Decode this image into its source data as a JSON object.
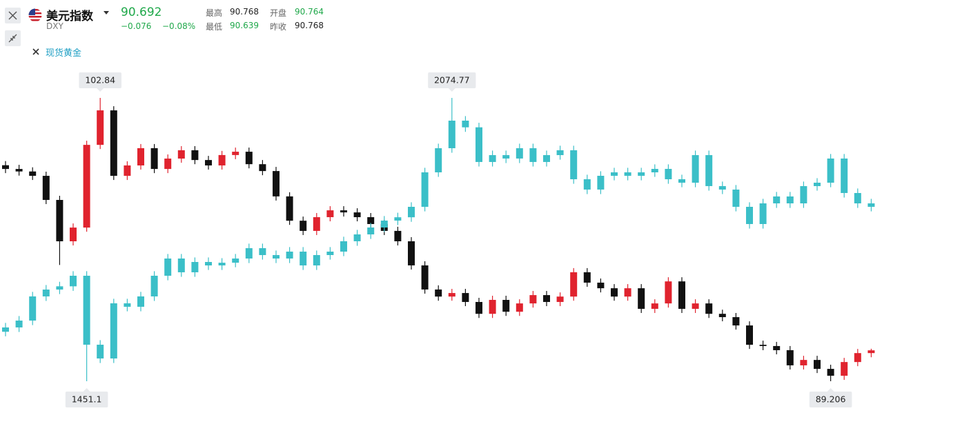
{
  "header": {
    "symbol": "DXY",
    "price": "90.692",
    "change": "−0.076",
    "change_pct": "−0.08%",
    "stats": [
      {
        "label": "最高",
        "value": "90.768"
      },
      {
        "label": "开盘",
        "value": "90.764"
      },
      {
        "label": "最低",
        "value": "90.639"
      },
      {
        "label": "昨收",
        "value": "90.768"
      }
    ]
  },
  "chart_data": {
    "type": "candlestick",
    "series": [
      {
        "name": "美元指数",
        "up_color": "#e0232e",
        "down_color": "#111111",
        "open": [
          99.6,
          99.42,
          99.3,
          99.09,
          97.93,
          95.94,
          96.6,
          100.58,
          102.24,
          99.09,
          99.59,
          100.42,
          99.42,
          99.92,
          100.32,
          99.85,
          99.59,
          100.09,
          100.25,
          99.65,
          99.32,
          98.1,
          96.93,
          96.44,
          97.1,
          97.43,
          97.33,
          97.1,
          96.77,
          96.44,
          95.94,
          94.78,
          93.62,
          93.28,
          93.45,
          93.02,
          92.45,
          93.12,
          92.55,
          92.95,
          93.35,
          93.02,
          93.28,
          94.45,
          93.95,
          93.68,
          93.28,
          93.68,
          92.69,
          92.95,
          94.01,
          92.69,
          92.95,
          92.45,
          92.29,
          91.89,
          90.96,
          90.9,
          90.7,
          89.97,
          90.23,
          89.8,
          89.47,
          90.13,
          90.56
        ],
        "high": [
          99.8,
          99.62,
          99.5,
          99.29,
          98.13,
          96.8,
          100.78,
          102.84,
          102.44,
          99.79,
          100.62,
          100.62,
          100.12,
          100.52,
          100.52,
          100.05,
          100.29,
          100.45,
          100.45,
          99.85,
          99.52,
          98.3,
          97.13,
          97.3,
          97.63,
          97.63,
          97.53,
          97.3,
          96.97,
          96.64,
          96.14,
          94.98,
          93.82,
          93.65,
          93.65,
          93.22,
          93.32,
          93.32,
          93.15,
          93.55,
          93.55,
          93.48,
          94.65,
          94.65,
          94.15,
          93.88,
          93.88,
          93.88,
          93.15,
          94.21,
          94.21,
          93.15,
          93.15,
          92.65,
          92.49,
          92.09,
          91.16,
          91.1,
          90.9,
          90.43,
          90.43,
          90.0,
          90.33,
          90.76,
          90.768
        ],
        "low": [
          99.22,
          99.1,
          98.89,
          97.73,
          94.8,
          95.74,
          96.4,
          100.38,
          98.89,
          98.89,
          99.39,
          99.22,
          99.22,
          99.72,
          99.65,
          99.39,
          99.39,
          99.89,
          99.45,
          99.12,
          97.9,
          96.73,
          96.24,
          96.24,
          96.9,
          97.13,
          96.9,
          96.57,
          96.24,
          95.74,
          94.58,
          93.42,
          93.08,
          93.08,
          92.82,
          92.25,
          92.25,
          92.35,
          92.35,
          92.75,
          92.82,
          92.82,
          93.08,
          93.75,
          93.48,
          93.08,
          93.08,
          92.49,
          92.49,
          92.75,
          92.49,
          92.49,
          92.25,
          92.09,
          91.69,
          90.76,
          90.7,
          90.5,
          89.77,
          89.77,
          89.6,
          89.206,
          89.27,
          89.93,
          90.36
        ],
        "close": [
          99.42,
          99.3,
          99.09,
          97.93,
          95.94,
          96.6,
          100.58,
          102.24,
          99.09,
          99.59,
          100.42,
          99.42,
          99.92,
          100.32,
          99.85,
          99.59,
          100.09,
          100.25,
          99.65,
          99.32,
          98.1,
          96.93,
          96.44,
          97.1,
          97.43,
          97.33,
          97.1,
          96.77,
          96.44,
          95.94,
          94.78,
          93.62,
          93.28,
          93.45,
          93.02,
          92.45,
          93.12,
          92.55,
          92.95,
          93.35,
          93.02,
          93.28,
          94.45,
          93.95,
          93.68,
          93.28,
          93.68,
          92.69,
          92.95,
          94.01,
          92.69,
          92.95,
          92.45,
          92.29,
          91.89,
          90.96,
          90.9,
          90.7,
          89.97,
          90.23,
          89.8,
          89.47,
          90.13,
          90.56,
          90.692
        ]
      },
      {
        "name": "现货黄金",
        "up_color": "#3bbfc8",
        "down_color": "#3bbfc8",
        "open": [
          1560.0,
          1569.5,
          1584.6,
          1637.8,
          1652.9,
          1660.0,
          1683.3,
          1531.5,
          1501.2,
          1622.6,
          1615.0,
          1637.8,
          1683.3,
          1721.2,
          1690.9,
          1713.6,
          1706.0,
          1712.0,
          1721.2,
          1744.0,
          1728.8,
          1721.2,
          1736.4,
          1706.0,
          1728.8,
          1736.4,
          1759.2,
          1774.3,
          1789.5,
          1804.7,
          1812.0,
          1835.0,
          1910.9,
          1964.0,
          2024.7,
          2010.0,
          1933.7,
          1948.8,
          1941.3,
          1964.0,
          1933.7,
          1948.8,
          1959.5,
          1895.7,
          1873.0,
          1903.3,
          1910.9,
          1903.3,
          1910.9,
          1918.5,
          1895.7,
          1888.1,
          1948.8,
          1880.6,
          1873.0,
          1835.0,
          1797.1,
          1842.6,
          1857.8,
          1842.6,
          1880.6,
          1888.1,
          1941.3,
          1865.4,
          1842.6
        ],
        "high": [
          1579.5,
          1594.6,
          1647.8,
          1662.9,
          1670.0,
          1693.3,
          1693.3,
          1541.5,
          1632.6,
          1632.6,
          1647.8,
          1693.3,
          1731.2,
          1731.2,
          1723.6,
          1723.6,
          1722.0,
          1731.2,
          1754.0,
          1754.0,
          1738.8,
          1746.4,
          1746.4,
          1738.8,
          1746.4,
          1769.2,
          1784.3,
          1799.5,
          1814.7,
          1822.0,
          1845.0,
          1920.9,
          1974.0,
          2074.77,
          2034.7,
          2020.0,
          1958.8,
          1958.8,
          1974.0,
          1974.0,
          1958.8,
          1969.5,
          1969.5,
          1905.7,
          1913.3,
          1920.9,
          1920.9,
          1920.9,
          1928.5,
          1928.5,
          1905.7,
          1958.8,
          1958.8,
          1890.6,
          1883.0,
          1845.0,
          1852.6,
          1867.8,
          1867.8,
          1890.6,
          1898.1,
          1951.3,
          1951.3,
          1875.4,
          1852.6
        ],
        "low": [
          1550.0,
          1559.5,
          1574.6,
          1627.8,
          1642.9,
          1650.0,
          1451.1,
          1491.2,
          1491.2,
          1605.0,
          1605.0,
          1627.8,
          1673.3,
          1680.9,
          1680.9,
          1696.0,
          1696.0,
          1702.0,
          1711.2,
          1718.8,
          1711.2,
          1711.2,
          1696.0,
          1696.0,
          1718.8,
          1726.4,
          1749.2,
          1764.3,
          1779.5,
          1794.7,
          1802.0,
          1825.0,
          1900.9,
          1954.0,
          2000.0,
          1923.7,
          1923.7,
          1931.3,
          1931.3,
          1923.7,
          1923.7,
          1938.8,
          1885.7,
          1863.0,
          1863.0,
          1893.3,
          1893.3,
          1893.3,
          1900.9,
          1885.7,
          1878.1,
          1878.1,
          1870.6,
          1863.0,
          1825.0,
          1787.1,
          1787.1,
          1832.6,
          1832.6,
          1832.6,
          1870.6,
          1878.1,
          1855.4,
          1832.6,
          1825.0
        ],
        "close": [
          1569.5,
          1584.6,
          1637.8,
          1652.9,
          1660.0,
          1683.3,
          1531.5,
          1501.2,
          1622.6,
          1615.0,
          1637.8,
          1683.3,
          1721.2,
          1690.9,
          1713.6,
          1706.0,
          1712.0,
          1721.2,
          1744.0,
          1728.8,
          1721.2,
          1736.4,
          1706.0,
          1728.8,
          1736.4,
          1759.2,
          1774.3,
          1789.5,
          1804.7,
          1812.0,
          1835.0,
          1910.9,
          1964.0,
          2024.7,
          2010.0,
          1933.7,
          1948.8,
          1941.3,
          1964.0,
          1933.7,
          1948.8,
          1959.5,
          1895.7,
          1873.0,
          1903.3,
          1910.9,
          1903.3,
          1910.9,
          1918.5,
          1895.7,
          1888.1,
          1948.8,
          1880.6,
          1873.0,
          1835.0,
          1797.1,
          1842.6,
          1857.8,
          1842.6,
          1880.6,
          1888.1,
          1941.3,
          1865.4,
          1842.6,
          1835.0
        ]
      }
    ]
  }
}
